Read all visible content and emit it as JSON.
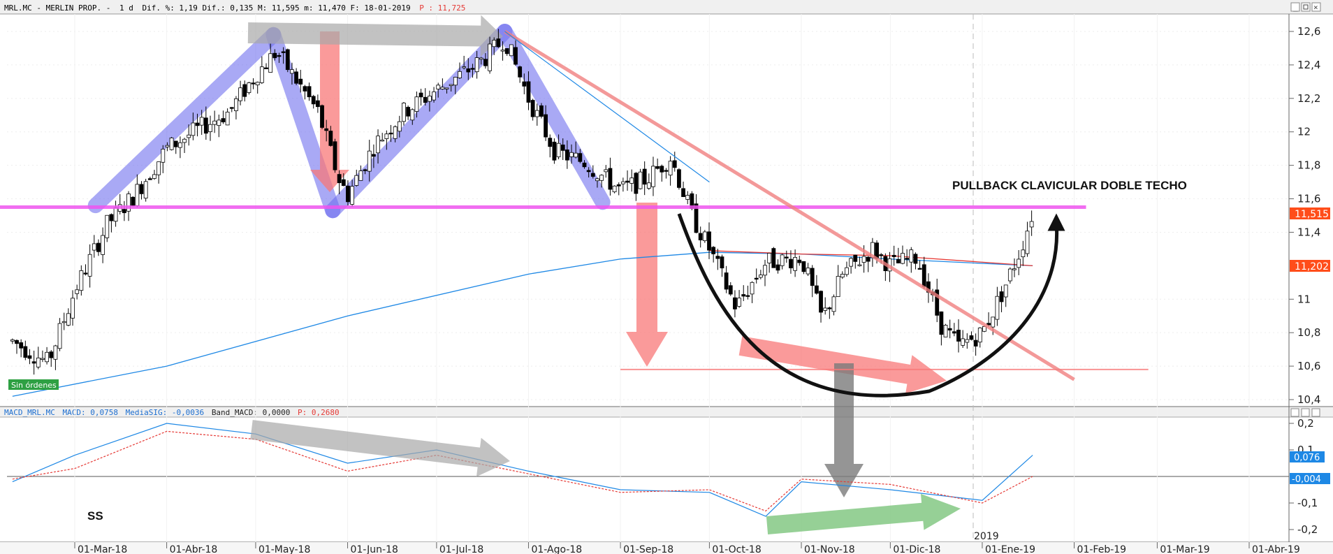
{
  "header": {
    "ticker": "MRL.MC - MERLIN PROP. -",
    "period": "1 d",
    "stats": "Dif. %: 1,19 Dif.: 0,135 M: 11,595 m: 11,470 F: 18-01-2019",
    "last_label": "P : 11,725"
  },
  "macd_header": {
    "name": "MACD_MRL.MC",
    "macd": "MACD: 0,0758",
    "signal": "MediaSIG: -0,0036",
    "band": "Band_MACD: 0,0000",
    "p": "P: 0,2680"
  },
  "badge": "Sin órdenes",
  "annotation": "PULLBACK CLAVICULAR DOBLE TECHO",
  "ss_label": "SS",
  "year_label": "2019",
  "price_tags": {
    "last": "11,515",
    "ma": "11,202"
  },
  "macd_tags": {
    "macd": "0,076",
    "signal": "-0,004"
  },
  "colors": {
    "up": "#ffffff",
    "down": "#000000",
    "ma200": "#1e88e5",
    "ma50": "#e53935",
    "neckline": "#ee55ee",
    "pattern": "#6f6fef",
    "down_arrow": "#f87878",
    "trend_arrow": "#a8a8a8",
    "green_arrow": "#7cc47c",
    "last_tag": "#ff4d1a",
    "macd_tag": "#1e88e5"
  },
  "chart_data": [
    {
      "type": "candlestick",
      "title": "MRL.MC - MERLIN PROP.",
      "ylim": [
        10.4,
        12.7
      ],
      "y_ticks": [
        "12,6",
        "12,4",
        "12,2",
        "12",
        "11,8",
        "11,6",
        "11,4",
        "11",
        "10,8",
        "10,6",
        "10,4"
      ],
      "x_ticks": [
        "01-Mar-18",
        "01-Abr-18",
        "01-May-18",
        "01-Jun-18",
        "01-Jul-18",
        "01-Ago-18",
        "01-Sep-18",
        "01-Oct-18",
        "01-Nov-18",
        "01-Dic-18",
        "01-Ene-19",
        "01-Feb-19",
        "01-Mar-19",
        "01-Abr-19"
      ],
      "price_path": [
        [
          "08-Feb-18",
          10.75
        ],
        [
          "20-Feb-18",
          10.62
        ],
        [
          "01-Mar-18",
          11.05
        ],
        [
          "12-Mar-18",
          11.45
        ],
        [
          "21-Mar-18",
          11.62
        ],
        [
          "01-Abr-18",
          11.9
        ],
        [
          "12-Abr-18",
          12.02
        ],
        [
          "22-Abr-18",
          12.12
        ],
        [
          "01-May-18",
          12.34
        ],
        [
          "08-May-18",
          12.48
        ],
        [
          "15-May-18",
          12.3
        ],
        [
          "22-May-18",
          12.12
        ],
        [
          "29-May-18",
          11.72
        ],
        [
          "01-Jun-18",
          11.62
        ],
        [
          "10-Jun-18",
          11.92
        ],
        [
          "20-Jun-18",
          12.12
        ],
        [
          "01-Jul-18",
          12.25
        ],
        [
          "10-Jul-18",
          12.35
        ],
        [
          "18-Jul-18",
          12.45
        ],
        [
          "24-Jul-18",
          12.56
        ],
        [
          "01-Ago-18",
          12.2
        ],
        [
          "10-Ago-18",
          11.88
        ],
        [
          "20-Ago-18",
          11.82
        ],
        [
          "01-Sep-18",
          11.65
        ],
        [
          "10-Sep-18",
          11.72
        ],
        [
          "18-Sep-18",
          11.85
        ],
        [
          "25-Sep-18",
          11.5
        ],
        [
          "01-Oct-18",
          11.3
        ],
        [
          "10-Oct-18",
          10.95
        ],
        [
          "20-Oct-18",
          11.22
        ],
        [
          "01-Nov-18",
          11.25
        ],
        [
          "08-Nov-18",
          10.88
        ],
        [
          "15-Nov-18",
          11.15
        ],
        [
          "25-Nov-18",
          11.3
        ],
        [
          "01-Dic-18",
          11.2
        ],
        [
          "10-Dic-18",
          11.25
        ],
        [
          "18-Dic-18",
          10.85
        ],
        [
          "24-Dic-18",
          10.72
        ],
        [
          "01-Ene-19",
          10.8
        ],
        [
          "08-Ene-19",
          11.05
        ],
        [
          "14-Ene-19",
          11.3
        ],
        [
          "18-Ene-19",
          11.52
        ]
      ],
      "moving_averages": [
        {
          "name": "MA200",
          "color": "#1e88e5",
          "points": [
            [
              "08-Feb-18",
              10.42
            ],
            [
              "01-Abr-18",
              10.6
            ],
            [
              "01-Jun-18",
              10.9
            ],
            [
              "01-Ago-18",
              11.15
            ],
            [
              "01-Sep-18",
              11.24
            ],
            [
              "01-Oct-18",
              11.28
            ],
            [
              "01-Nov-18",
              11.27
            ],
            [
              "01-Dic-18",
              11.24
            ],
            [
              "18-Ene-19",
              11.2
            ]
          ]
        },
        {
          "name": "MA50",
          "color": "#e53935",
          "points": [
            [
              "01-Oct-18",
              11.29
            ],
            [
              "01-Nov-18",
              11.27
            ],
            [
              "01-Dic-18",
              11.26
            ],
            [
              "18-Ene-19",
              11.2
            ]
          ]
        }
      ],
      "lines": [
        {
          "name": "neckline",
          "y": 11.55,
          "from": "01-Feb-18",
          "to": "05-Feb-19"
        },
        {
          "name": "support",
          "y": 10.58,
          "from": "01-Sep-18",
          "to": "26-Feb-19"
        },
        {
          "name": "downtrend",
          "from": [
            "24-Jul-18",
            12.6
          ],
          "to": [
            "01-Feb-19",
            10.52
          ]
        }
      ]
    },
    {
      "type": "line",
      "title": "MACD_MRL.MC",
      "ylim": [
        -0.24,
        0.24
      ],
      "y_ticks": [
        "0,2",
        "0,1",
        "-0,1",
        "-0,2"
      ],
      "series": [
        {
          "name": "MACD",
          "color": "#1e88e5",
          "points": [
            [
              "08-Feb-18",
              -0.02
            ],
            [
              "01-Mar-18",
              0.08
            ],
            [
              "01-Abr-18",
              0.2
            ],
            [
              "01-May-18",
              0.16
            ],
            [
              "01-Jun-18",
              0.05
            ],
            [
              "01-Jul-18",
              0.1
            ],
            [
              "01-Ago-18",
              0.02
            ],
            [
              "01-Sep-18",
              -0.05
            ],
            [
              "01-Oct-18",
              -0.06
            ],
            [
              "20-Oct-18",
              -0.15
            ],
            [
              "01-Nov-18",
              -0.02
            ],
            [
              "01-Dic-18",
              -0.05
            ],
            [
              "01-Ene-19",
              -0.09
            ],
            [
              "18-Ene-19",
              0.08
            ]
          ]
        },
        {
          "name": "MediaSIG",
          "color": "#e53935",
          "points": [
            [
              "08-Feb-18",
              -0.01
            ],
            [
              "01-Mar-18",
              0.03
            ],
            [
              "01-Abr-18",
              0.17
            ],
            [
              "01-May-18",
              0.14
            ],
            [
              "01-Jun-18",
              0.02
            ],
            [
              "01-Jul-18",
              0.08
            ],
            [
              "01-Ago-18",
              0.01
            ],
            [
              "01-Sep-18",
              -0.06
            ],
            [
              "01-Oct-18",
              -0.05
            ],
            [
              "20-Oct-18",
              -0.13
            ],
            [
              "01-Nov-18",
              -0.01
            ],
            [
              "01-Dic-18",
              -0.03
            ],
            [
              "01-Ene-19",
              -0.1
            ],
            [
              "18-Ene-19",
              0.0
            ]
          ]
        }
      ]
    }
  ]
}
